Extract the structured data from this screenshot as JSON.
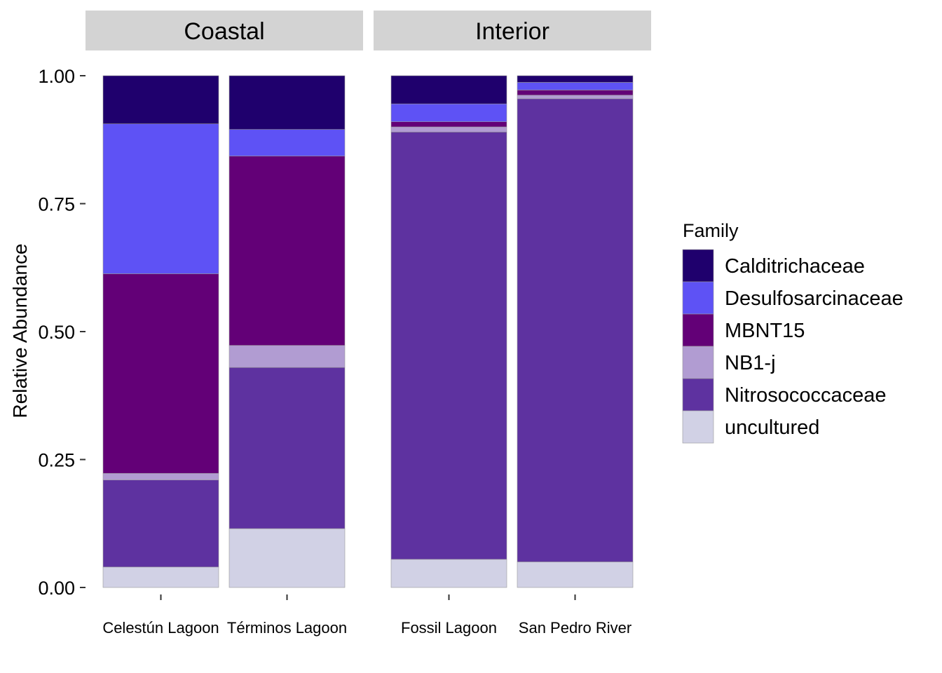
{
  "chart_data": {
    "type": "bar",
    "stacked": true,
    "ylabel": "Relative Abundance",
    "ylim": [
      0,
      1
    ],
    "yticks": [
      "0.00",
      "0.25",
      "0.50",
      "0.75",
      "1.00"
    ],
    "facets": [
      {
        "label": "Coastal",
        "categories": [
          "Celestún Lagoon",
          "Términos Lagoon"
        ]
      },
      {
        "label": "Interior",
        "categories": [
          "Fossil Lagoon",
          "San Pedro River"
        ]
      }
    ],
    "legend": {
      "title": "Family",
      "position": "right"
    },
    "series": [
      {
        "name": "uncultured",
        "color": "#D1D1E5",
        "values": [
          0.04,
          0.115,
          0.055,
          0.05
        ]
      },
      {
        "name": "Nitrosococcaceae",
        "color": "#5E32A0",
        "values": [
          0.17,
          0.315,
          0.835,
          0.905
        ]
      },
      {
        "name": "NB1-j",
        "color": "#B19CD2",
        "values": [
          0.013,
          0.043,
          0.01,
          0.007
        ]
      },
      {
        "name": "MBNT15",
        "color": "#630077",
        "values": [
          0.39,
          0.37,
          0.01,
          0.01
        ]
      },
      {
        "name": "Desulfosarcinaceae",
        "color": "#5E52F5",
        "values": [
          0.293,
          0.052,
          0.035,
          0.015
        ]
      },
      {
        "name": "Calditrichaceae",
        "color": "#1F006D",
        "values": [
          0.094,
          0.105,
          0.055,
          0.013
        ]
      }
    ],
    "legend_order": [
      "Calditrichaceae",
      "Desulfosarcinaceae",
      "MBNT15",
      "NB1-j",
      "Nitrosococcaceae",
      "uncultured"
    ]
  }
}
